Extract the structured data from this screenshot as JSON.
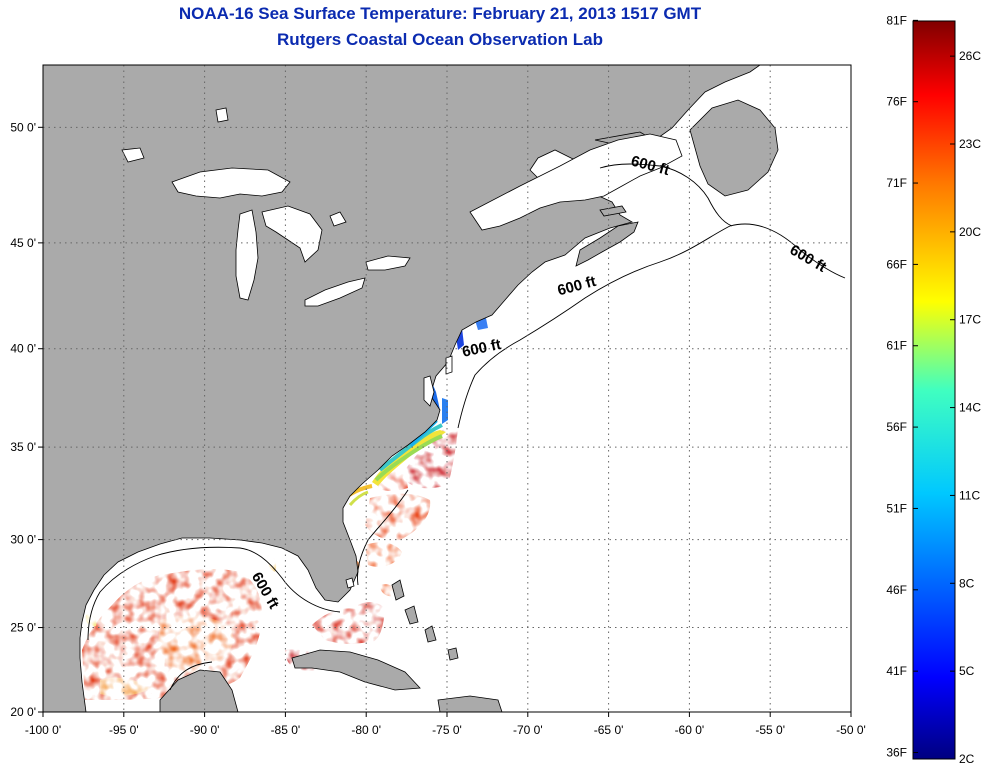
{
  "titles": {
    "line1": "NOAA-16 Sea Surface Temperature:  February 21, 2013 1517 GMT",
    "line2": "Rutgers Coastal Ocean Observation Lab"
  },
  "map": {
    "lon_range": [
      -100,
      -50
    ],
    "lat_range": [
      20,
      52.5
    ],
    "lon_ticks": [
      {
        "value": -100,
        "label": "-100 0'"
      },
      {
        "value": -95,
        "label": "-95 0'"
      },
      {
        "value": -90,
        "label": "-90 0'"
      },
      {
        "value": -85,
        "label": "-85 0'"
      },
      {
        "value": -80,
        "label": "-80 0'"
      },
      {
        "value": -75,
        "label": "-75 0'"
      },
      {
        "value": -70,
        "label": "-70 0'"
      },
      {
        "value": -65,
        "label": "-65 0'"
      },
      {
        "value": -60,
        "label": "-60 0'"
      },
      {
        "value": -55,
        "label": "-55 0'"
      },
      {
        "value": -50,
        "label": "-50 0'"
      }
    ],
    "lat_ticks": [
      {
        "value": 20,
        "label": "20 0'"
      },
      {
        "value": 25,
        "label": "25 0'"
      },
      {
        "value": 30,
        "label": "30 0'"
      },
      {
        "value": 35,
        "label": "35 0'"
      },
      {
        "value": 40,
        "label": "40 0'"
      },
      {
        "value": 45,
        "label": "45 0'"
      },
      {
        "value": 50,
        "label": "50 0'"
      }
    ],
    "isobath_labels": [
      {
        "text": "600 ft",
        "lon": -62.5,
        "lat": 48.2,
        "angle": 15
      },
      {
        "text": "600 ft",
        "lon": -52.8,
        "lat": 44.1,
        "angle": 30
      },
      {
        "text": "600 ft",
        "lon": -66.9,
        "lat": 42.8,
        "angle": -15
      },
      {
        "text": "600 ft",
        "lon": -72.8,
        "lat": 39.8,
        "angle": -12
      },
      {
        "text": "600 ft",
        "lon": -86.5,
        "lat": 27.0,
        "angle": 60
      }
    ],
    "colors": {
      "land": "#aaaaaa",
      "ocean": "#ffffff",
      "grid": "#666666"
    }
  },
  "colorbar": {
    "min": 2,
    "max": 27.2,
    "f_labels": [
      "81F",
      "76F",
      "71F",
      "66F",
      "61F",
      "56F",
      "51F",
      "46F",
      "41F",
      "36F"
    ],
    "c_labels": [
      "26C",
      "23C",
      "20C",
      "17C",
      "14C",
      "11C",
      "8C",
      "5C",
      "2C"
    ]
  }
}
